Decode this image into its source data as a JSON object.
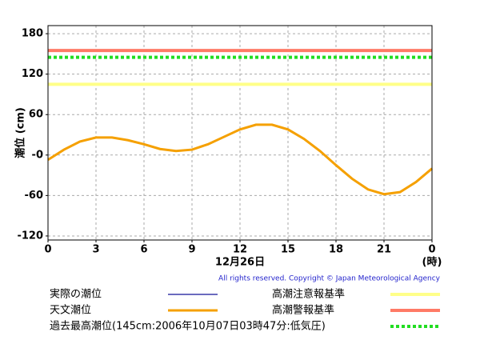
{
  "chart_data": {
    "type": "line",
    "y_label": "潮位 (cm)",
    "x_label": "12月26日",
    "x_unit": "(時)",
    "copyright": "All rights reserved. Copyright © Japan Meteorological Agency",
    "x": [
      0,
      1,
      2,
      3,
      4,
      5,
      6,
      7,
      8,
      9,
      10,
      11,
      12,
      13,
      14,
      15,
      16,
      17,
      18,
      19,
      20,
      21,
      22,
      23,
      24
    ],
    "xlim": [
      0,
      24
    ],
    "xticks": [
      0,
      3,
      6,
      9,
      12,
      15,
      18,
      21,
      {
        "value": 24,
        "label": "0"
      }
    ],
    "ylim": [
      -126,
      192
    ],
    "yticks": [
      180,
      120,
      60,
      {
        "value": 0,
        "label": "-0"
      },
      -60,
      -120
    ],
    "grid": true,
    "series": [
      {
        "name": "実際の潮位",
        "color": "#3a3aa8",
        "values": [
          null,
          null,
          null,
          null,
          null,
          null,
          null,
          null,
          null,
          null,
          null,
          null,
          null,
          null,
          null,
          null,
          null,
          null,
          null,
          null,
          null,
          null,
          null,
          null,
          null
        ]
      },
      {
        "name": "天文潮位",
        "color": "#f5a000",
        "values": [
          -7,
          8,
          20,
          26,
          26,
          22,
          16,
          9,
          6,
          8,
          16,
          27,
          38,
          45,
          45,
          38,
          24,
          6,
          -15,
          -35,
          -51,
          -58,
          -55,
          -40,
          -20
        ]
      }
    ],
    "reference_lines": [
      {
        "name": "高潮注意報基準",
        "value": 105,
        "color": "#ffff88",
        "style": "solid"
      },
      {
        "name": "高潮警報基準",
        "value": 155,
        "color": "#ff7a66",
        "style": "solid"
      },
      {
        "name": "過去最高潮位(145cm:2006年10月07日03時47分:低気圧)",
        "value": 145,
        "color": "#22dd22",
        "style": "dashed"
      }
    ]
  }
}
